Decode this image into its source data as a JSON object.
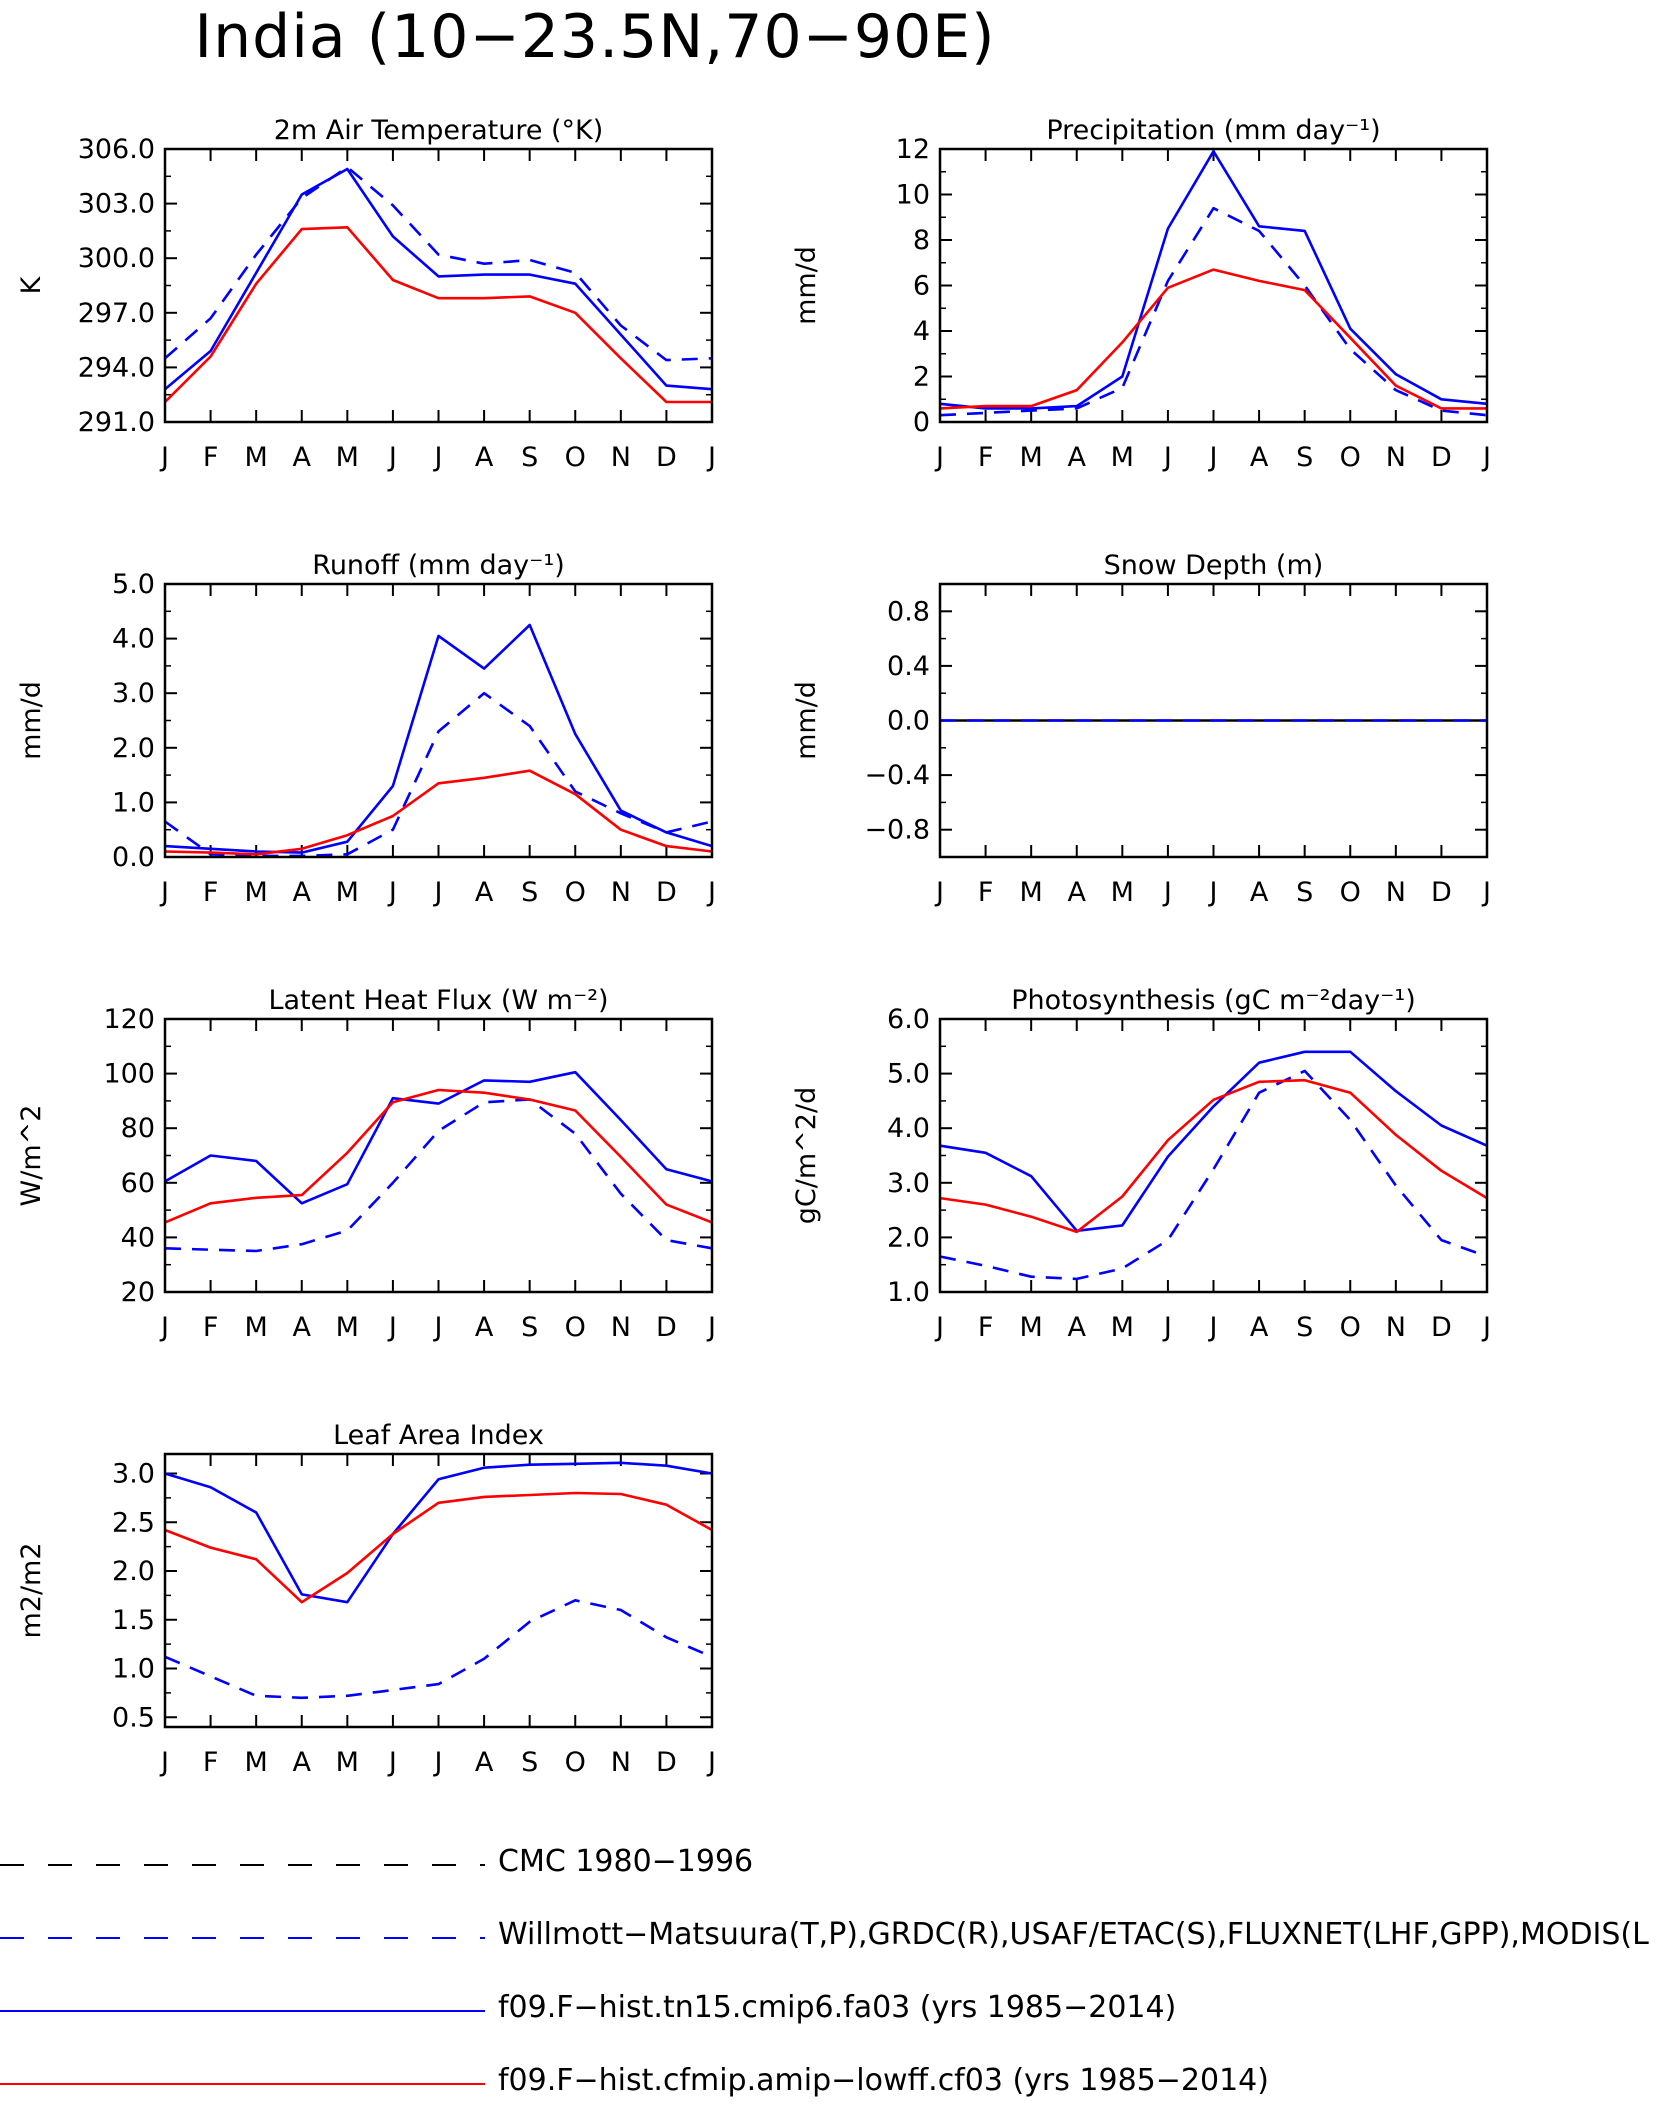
{
  "title": "India (10−23.5N,70−90E)",
  "colors": {
    "obs_ref": "#000000",
    "obs": "#0000ff",
    "model1": "#0000ff",
    "model2": "#ff0000"
  },
  "legend": [
    {
      "label": "CMC 1980−1996",
      "color": "#000000",
      "dash": true
    },
    {
      "label": "Willmott−Matsuura(T,P),GRDC(R),USAF/ETAC(S),FLUXNET(LHF,GPP),MODIS(L",
      "color": "#0000ff",
      "dash": true
    },
    {
      "label": "f09.F−hist.tn15.cmip6.fa03 (yrs 1985−2014)",
      "color": "#0000ff",
      "dash": false
    },
    {
      "label": "f09.F−hist.cfmip.amip−lowff.cf03 (yrs 1985−2014)",
      "color": "#ff0000",
      "dash": false
    }
  ],
  "chart_data": [
    {
      "type": "line",
      "title": "2m Air Temperature (°K)",
      "ylabel": "K",
      "categories": [
        "J",
        "F",
        "M",
        "A",
        "M",
        "J",
        "J",
        "A",
        "S",
        "O",
        "N",
        "D",
        "J"
      ],
      "ylim": [
        291.0,
        306.0
      ],
      "yticks": [
        291.0,
        294.0,
        297.0,
        300.0,
        303.0,
        306.0
      ],
      "ytick_labels": [
        "291.0",
        "294.0",
        "297.0",
        "300.0",
        "303.0",
        "306.0"
      ],
      "series": [
        {
          "dash": true,
          "color": "#0000ff",
          "values": [
            294.5,
            296.7,
            300.2,
            303.3,
            305.0,
            302.9,
            300.2,
            299.7,
            299.9,
            299.2,
            296.3,
            294.4,
            294.5
          ]
        },
        {
          "dash": false,
          "color": "#0000ff",
          "values": [
            292.8,
            294.9,
            299.2,
            303.5,
            304.9,
            301.2,
            299.0,
            299.1,
            299.1,
            298.6,
            295.8,
            293.0,
            292.8
          ]
        },
        {
          "dash": false,
          "color": "#ff0000",
          "values": [
            292.1,
            294.6,
            298.6,
            301.6,
            301.7,
            298.8,
            297.8,
            297.8,
            297.9,
            297.0,
            294.5,
            292.1,
            292.1
          ]
        }
      ]
    },
    {
      "type": "line",
      "title": "Precipitation (mm day⁻¹)",
      "ylabel": "mm/d",
      "categories": [
        "J",
        "F",
        "M",
        "A",
        "M",
        "J",
        "J",
        "A",
        "S",
        "O",
        "N",
        "D",
        "J"
      ],
      "ylim": [
        0,
        12
      ],
      "yticks": [
        0,
        2,
        4,
        6,
        8,
        10,
        12
      ],
      "ytick_labels": [
        "0",
        "2",
        "4",
        "6",
        "8",
        "10",
        "12"
      ],
      "series": [
        {
          "dash": true,
          "color": "#0000ff",
          "values": [
            0.3,
            0.4,
            0.5,
            0.6,
            1.5,
            6.2,
            9.4,
            8.4,
            6.0,
            3.2,
            1.4,
            0.5,
            0.3
          ]
        },
        {
          "dash": false,
          "color": "#0000ff",
          "values": [
            0.8,
            0.6,
            0.6,
            0.7,
            2.0,
            8.5,
            11.9,
            8.6,
            8.4,
            4.1,
            2.1,
            1.0,
            0.8
          ]
        },
        {
          "dash": false,
          "color": "#ff0000",
          "values": [
            0.6,
            0.7,
            0.7,
            1.4,
            3.5,
            5.9,
            6.7,
            6.2,
            5.8,
            3.7,
            1.6,
            0.6,
            0.6
          ]
        }
      ]
    },
    {
      "type": "line",
      "title": "Runoff (mm day⁻¹)",
      "ylabel": "mm/d",
      "categories": [
        "J",
        "F",
        "M",
        "A",
        "M",
        "J",
        "J",
        "A",
        "S",
        "O",
        "N",
        "D",
        "J"
      ],
      "ylim": [
        0,
        5
      ],
      "yticks": [
        0,
        1,
        2,
        3,
        4,
        5
      ],
      "ytick_labels": [
        "0.0",
        "1.0",
        "2.0",
        "3.0",
        "4.0",
        "5.0"
      ],
      "series": [
        {
          "dash": true,
          "color": "#0000ff",
          "values": [
            0.65,
            0.05,
            0.02,
            0.02,
            0.05,
            0.5,
            2.3,
            3.0,
            2.4,
            1.2,
            0.8,
            0.45,
            0.65
          ]
        },
        {
          "dash": false,
          "color": "#0000ff",
          "values": [
            0.2,
            0.15,
            0.1,
            0.08,
            0.28,
            1.3,
            4.05,
            3.45,
            4.25,
            2.25,
            0.85,
            0.45,
            0.2
          ]
        },
        {
          "dash": false,
          "color": "#ff0000",
          "values": [
            0.1,
            0.08,
            0.05,
            0.15,
            0.4,
            0.75,
            1.35,
            1.45,
            1.58,
            1.15,
            0.5,
            0.2,
            0.1
          ]
        }
      ]
    },
    {
      "type": "line",
      "title": "Snow Depth (m)",
      "ylabel": "mm/d",
      "categories": [
        "J",
        "F",
        "M",
        "A",
        "M",
        "J",
        "J",
        "A",
        "S",
        "O",
        "N",
        "D",
        "J"
      ],
      "ylim": [
        -1.0,
        1.0
      ],
      "yticks": [
        -0.8,
        -0.4,
        0.0,
        0.4,
        0.8
      ],
      "ytick_labels": [
        "−0.8",
        "−0.4",
        "0.0",
        "0.4",
        "0.8"
      ],
      "series": [
        {
          "dash": false,
          "color": "#000000",
          "values": [
            0,
            0,
            0,
            0,
            0,
            0,
            0,
            0,
            0,
            0,
            0,
            0,
            0
          ]
        },
        {
          "dash": true,
          "color": "#0000ff",
          "values": [
            0,
            0,
            0,
            0,
            0,
            0,
            0,
            0,
            0,
            0,
            0,
            0,
            0
          ]
        }
      ]
    },
    {
      "type": "line",
      "title": "Latent Heat Flux (W m⁻²)",
      "ylabel": "W/m^2",
      "categories": [
        "J",
        "F",
        "M",
        "A",
        "M",
        "J",
        "J",
        "A",
        "S",
        "O",
        "N",
        "D",
        "J"
      ],
      "ylim": [
        20,
        120
      ],
      "yticks": [
        20,
        40,
        60,
        80,
        100,
        120
      ],
      "ytick_labels": [
        "20",
        "40",
        "60",
        "80",
        "100",
        "120"
      ],
      "series": [
        {
          "dash": true,
          "color": "#0000ff",
          "values": [
            36,
            35.5,
            35,
            37.5,
            42.5,
            60,
            79,
            89.5,
            90.5,
            78,
            56,
            39,
            36
          ]
        },
        {
          "dash": false,
          "color": "#0000ff",
          "values": [
            60.5,
            70,
            68,
            52.5,
            59.5,
            91,
            89,
            97.5,
            97,
            100.5,
            83,
            65,
            60.5
          ]
        },
        {
          "dash": false,
          "color": "#ff0000",
          "values": [
            45.5,
            52.5,
            54.5,
            55.5,
            71,
            89.5,
            94,
            93,
            90.5,
            86.5,
            69.5,
            52,
            45.5
          ]
        }
      ]
    },
    {
      "type": "line",
      "title": "Photosynthesis (gC m⁻²day⁻¹)",
      "ylabel": "gC/m^2/d",
      "categories": [
        "J",
        "F",
        "M",
        "A",
        "M",
        "J",
        "J",
        "A",
        "S",
        "O",
        "N",
        "D",
        "J"
      ],
      "ylim": [
        1.0,
        6.0
      ],
      "yticks": [
        1,
        2,
        3,
        4,
        5,
        6
      ],
      "ytick_labels": [
        "1.0",
        "2.0",
        "3.0",
        "4.0",
        "5.0",
        "6.0"
      ],
      "series": [
        {
          "dash": true,
          "color": "#0000ff",
          "values": [
            1.65,
            1.48,
            1.28,
            1.24,
            1.43,
            1.95,
            3.25,
            4.65,
            5.05,
            4.15,
            2.95,
            1.95,
            1.65
          ]
        },
        {
          "dash": false,
          "color": "#0000ff",
          "values": [
            3.68,
            3.55,
            3.12,
            2.12,
            2.22,
            3.48,
            4.4,
            5.2,
            5.4,
            5.4,
            4.68,
            4.05,
            3.68
          ]
        },
        {
          "dash": false,
          "color": "#ff0000",
          "values": [
            2.72,
            2.6,
            2.38,
            2.1,
            2.75,
            3.78,
            4.52,
            4.85,
            4.88,
            4.65,
            3.88,
            3.22,
            2.72
          ]
        }
      ]
    },
    {
      "type": "line",
      "title": "Leaf Area Index",
      "ylabel": "m2/m2",
      "categories": [
        "J",
        "F",
        "M",
        "A",
        "M",
        "J",
        "J",
        "A",
        "S",
        "O",
        "N",
        "D",
        "J"
      ],
      "ylim": [
        0.4,
        3.2
      ],
      "yticks": [
        0.5,
        1.0,
        1.5,
        2.0,
        2.5,
        3.0
      ],
      "ytick_labels": [
        "0.5",
        "1.0",
        "1.5",
        "2.0",
        "2.5",
        "3.0"
      ],
      "series": [
        {
          "dash": true,
          "color": "#0000ff",
          "values": [
            1.12,
            0.92,
            0.72,
            0.7,
            0.72,
            0.78,
            0.84,
            1.1,
            1.48,
            1.7,
            1.6,
            1.32,
            1.12
          ]
        },
        {
          "dash": false,
          "color": "#0000ff",
          "values": [
            3.0,
            2.86,
            2.6,
            1.76,
            1.68,
            2.38,
            2.94,
            3.06,
            3.09,
            3.1,
            3.11,
            3.08,
            3.0
          ]
        },
        {
          "dash": false,
          "color": "#ff0000",
          "values": [
            2.42,
            2.24,
            2.12,
            1.68,
            1.98,
            2.38,
            2.7,
            2.76,
            2.78,
            2.8,
            2.79,
            2.68,
            2.42
          ]
        }
      ]
    }
  ]
}
